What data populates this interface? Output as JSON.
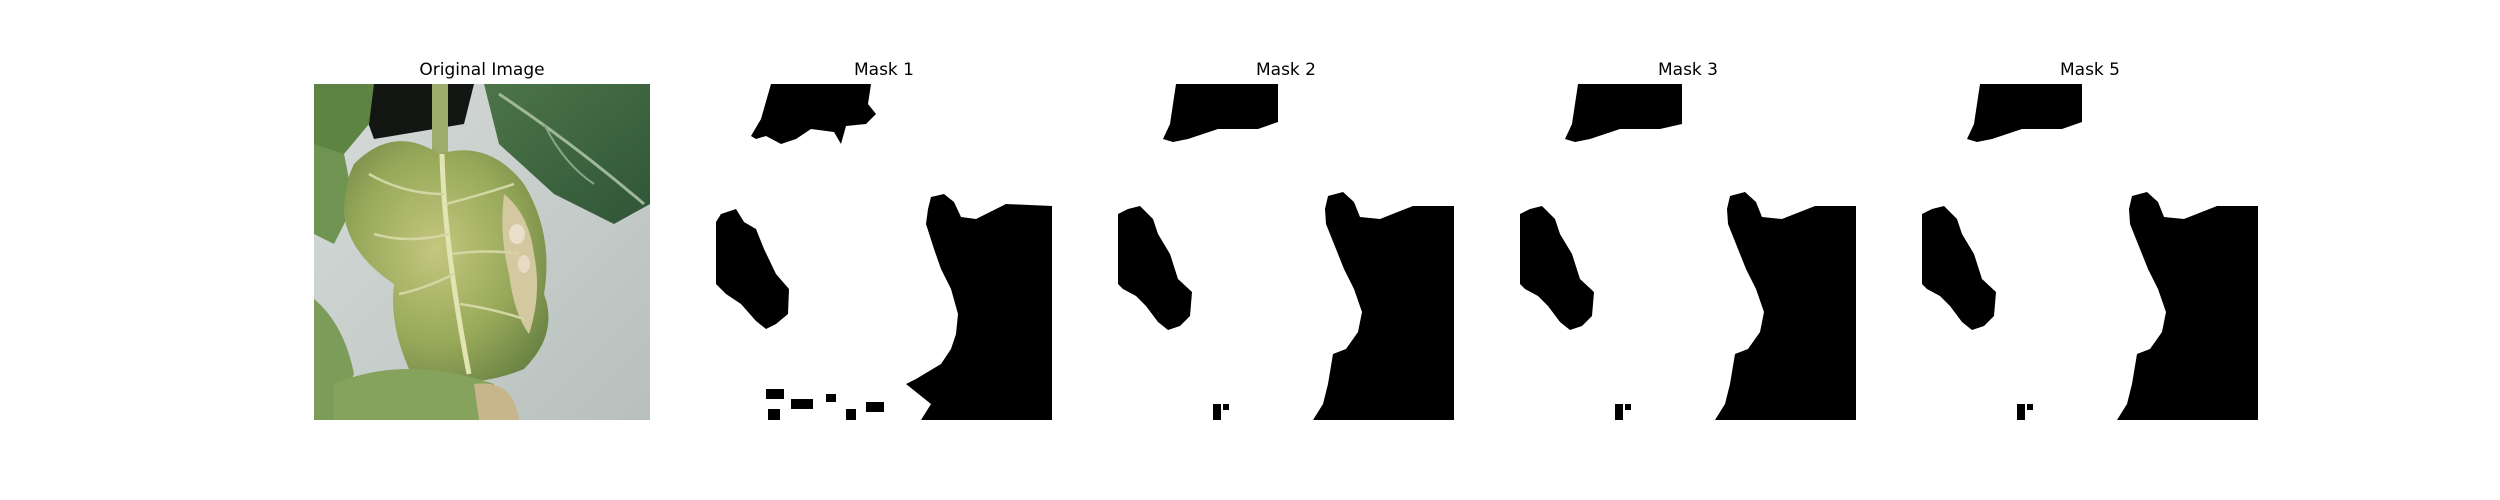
{
  "panels": [
    {
      "title": "Original Image",
      "kind": "photo",
      "subject": "leaf-photo"
    },
    {
      "title": "Mask 1",
      "kind": "mask"
    },
    {
      "title": "Mask 2",
      "kind": "mask"
    },
    {
      "title": "Mask 3",
      "kind": "mask"
    },
    {
      "title": "Mask 5",
      "kind": "mask"
    }
  ],
  "colors": {
    "background": "#ffffff",
    "mask_foreground": "#ffffff",
    "mask_background": "#000000",
    "leaf_light": "#b9c277",
    "leaf_dark": "#5f7a3e",
    "leaf_deep": "#3f5e35",
    "wall": "#c8cfcc"
  }
}
